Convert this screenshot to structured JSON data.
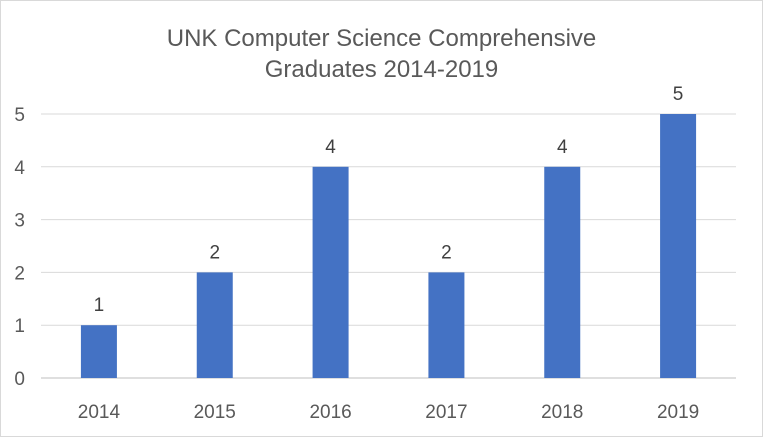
{
  "chart_data": {
    "type": "bar",
    "title_lines": [
      "UNK  Computer Science Comprehensive",
      "Graduates 2014-2019"
    ],
    "categories": [
      "2014",
      "2015",
      "2016",
      "2017",
      "2018",
      "2019"
    ],
    "values": [
      1,
      2,
      4,
      2,
      4,
      5
    ],
    "ylim": [
      0,
      5
    ],
    "yticks": [
      0,
      1,
      2,
      3,
      4,
      5
    ],
    "grid": true,
    "legend": "none",
    "bar_color": "#4472c4",
    "grid_color": "#d9d9d9",
    "data_labels": true
  }
}
